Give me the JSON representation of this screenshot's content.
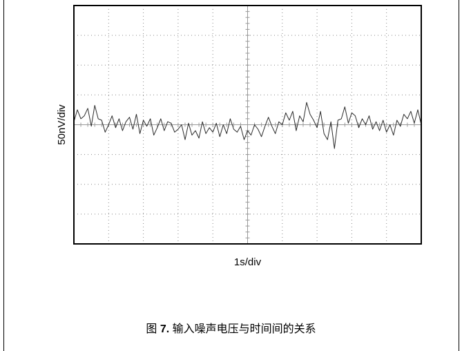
{
  "chart_data": {
    "type": "line",
    "xlabel": "1s/div",
    "ylabel": "50nV/div",
    "xlim": [
      0,
      10
    ],
    "ylim": [
      -4,
      4
    ],
    "grid": true,
    "grid_divisions": {
      "x": 10,
      "y": 8
    },
    "trace_color": "#2a2a2a",
    "x": [
      0,
      0.1,
      0.2,
      0.3,
      0.4,
      0.5,
      0.6,
      0.7,
      0.8,
      0.9,
      1.0,
      1.1,
      1.2,
      1.3,
      1.4,
      1.5,
      1.6,
      1.7,
      1.8,
      1.9,
      2.0,
      2.1,
      2.2,
      2.3,
      2.4,
      2.5,
      2.6,
      2.7,
      2.8,
      2.9,
      3.0,
      3.1,
      3.2,
      3.3,
      3.4,
      3.5,
      3.6,
      3.7,
      3.8,
      3.9,
      4.0,
      4.1,
      4.2,
      4.3,
      4.4,
      4.5,
      4.6,
      4.7,
      4.8,
      4.9,
      5.0,
      5.1,
      5.2,
      5.3,
      5.4,
      5.5,
      5.6,
      5.7,
      5.8,
      5.9,
      6.0,
      6.1,
      6.2,
      6.3,
      6.4,
      6.5,
      6.6,
      6.7,
      6.8,
      6.9,
      7.0,
      7.1,
      7.2,
      7.3,
      7.4,
      7.5,
      7.6,
      7.7,
      7.8,
      7.9,
      8.0,
      8.1,
      8.2,
      8.3,
      8.4,
      8.5,
      8.6,
      8.7,
      8.8,
      8.9,
      9.0,
      9.1,
      9.2,
      9.3,
      9.4,
      9.5,
      9.6,
      9.7,
      9.8,
      9.9,
      10.0
    ],
    "y": [
      0.1,
      0.5,
      0.2,
      0.3,
      0.55,
      -0.05,
      0.65,
      0.2,
      0.15,
      -0.25,
      0.0,
      0.3,
      -0.1,
      0.2,
      -0.2,
      0.1,
      0.25,
      -0.15,
      0.35,
      -0.3,
      0.15,
      -0.05,
      0.2,
      -0.35,
      -0.1,
      0.2,
      -0.2,
      0.1,
      0.05,
      -0.25,
      -0.15,
      0.0,
      -0.5,
      0.05,
      -0.35,
      -0.2,
      -0.45,
      0.1,
      -0.3,
      -0.1,
      -0.25,
      0.05,
      -0.4,
      0.0,
      -0.3,
      0.2,
      -0.15,
      -0.25,
      -0.05,
      -0.5,
      -0.2,
      -0.35,
      0.0,
      -0.15,
      -0.4,
      -0.05,
      0.25,
      -0.05,
      -0.3,
      0.1,
      0.0,
      0.4,
      0.15,
      0.45,
      -0.2,
      0.3,
      0.1,
      0.75,
      0.35,
      0.15,
      -0.1,
      0.45,
      -0.3,
      -0.5,
      0.1,
      -0.8,
      0.15,
      0.2,
      0.6,
      0.05,
      0.4,
      0.3,
      -0.1,
      0.2,
      0.0,
      0.3,
      -0.15,
      0.1,
      -0.2,
      0.15,
      -0.25,
      0.0,
      -0.35,
      0.15,
      -0.05,
      0.35,
      0.2,
      0.45,
      0.05,
      0.5,
      0.0
    ]
  },
  "caption": {
    "prefix": "图",
    "number": "7.",
    "text": "输入噪声电压与时间间的关系"
  }
}
